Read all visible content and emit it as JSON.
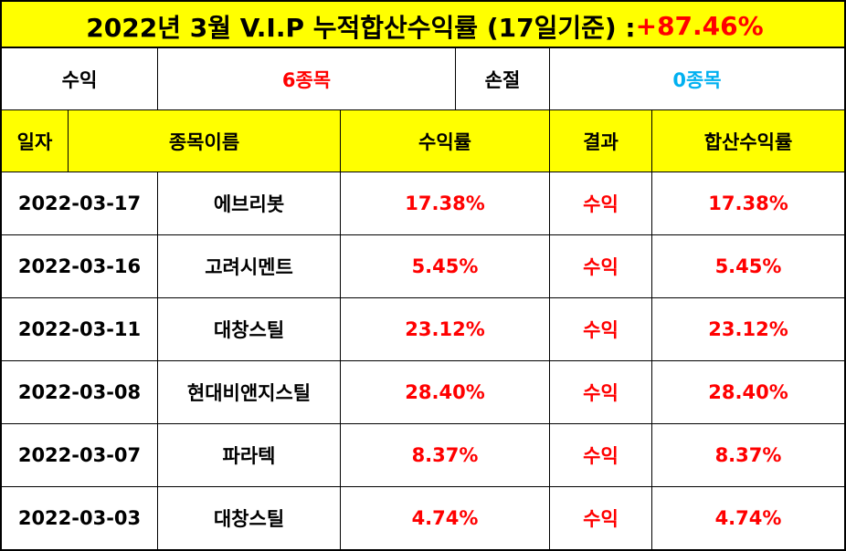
{
  "title": {
    "main": "2022년 3월 V.I.P 누적합산수익률 (17일기준) : ",
    "total": "+87.46%"
  },
  "summary": {
    "profit_label": "수익",
    "profit_value": "6종목",
    "loss_label": "손절",
    "loss_value": "0종목"
  },
  "headers": {
    "date": "일자",
    "name": "종목이름",
    "rate": "수익률",
    "result": "결과",
    "cumulative": "합산수익률"
  },
  "rows": [
    {
      "date": "2022-03-17",
      "name": "에브리봇",
      "rate": "17.38%",
      "result": "수익",
      "cumulative": "17.38%"
    },
    {
      "date": "2022-03-16",
      "name": "고려시멘트",
      "rate": "5.45%",
      "result": "수익",
      "cumulative": "5.45%"
    },
    {
      "date": "2022-03-11",
      "name": "대창스틸",
      "rate": "23.12%",
      "result": "수익",
      "cumulative": "23.12%"
    },
    {
      "date": "2022-03-08",
      "name": "현대비앤지스틸",
      "rate": "28.40%",
      "result": "수익",
      "cumulative": "28.40%"
    },
    {
      "date": "2022-03-07",
      "name": "파라텍",
      "rate": "8.37%",
      "result": "수익",
      "cumulative": "8.37%"
    },
    {
      "date": "2022-03-03",
      "name": "대창스틸",
      "rate": "4.74%",
      "result": "수익",
      "cumulative": "4.74%"
    }
  ],
  "colors": {
    "highlight": "#ffff00",
    "profit": "#ff0000",
    "loss": "#00b0f0"
  }
}
